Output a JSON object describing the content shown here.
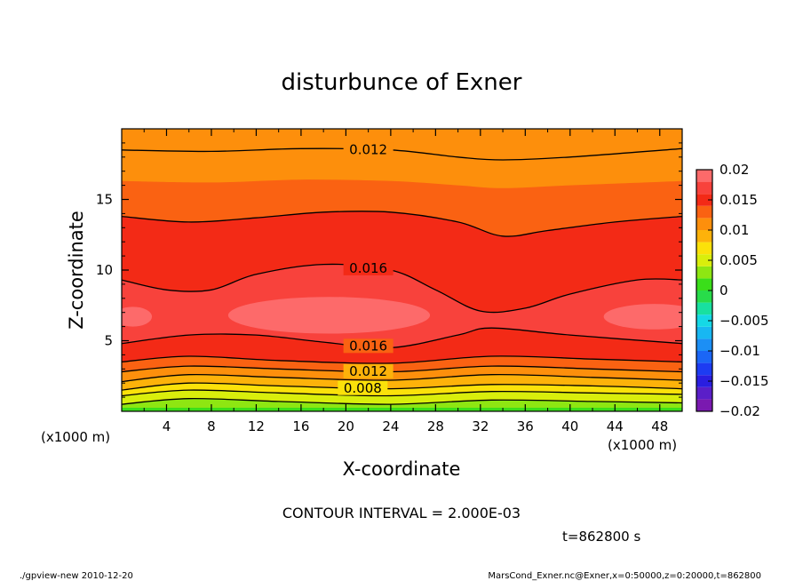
{
  "chart_data": {
    "type": "heatmap",
    "title": "disturbunce of Exner",
    "xlabel": "X-coordinate",
    "ylabel": "Z-coordinate",
    "x_unit": "(x1000 m)",
    "z_unit": "(x1000 m)",
    "xlim": [
      0,
      50
    ],
    "ylim": [
      0,
      20
    ],
    "x_ticks": [
      "4",
      "8",
      "12",
      "16",
      "20",
      "24",
      "28",
      "32",
      "36",
      "40",
      "44",
      "48"
    ],
    "y_ticks": [
      "5",
      "10",
      "15"
    ],
    "colorbar": {
      "ticks": [
        "0.02",
        "0.015",
        "0.01",
        "0.005",
        "0",
        "−0.005",
        "−0.01",
        "−0.015",
        "−0.02"
      ],
      "range": [
        -0.02,
        0.02
      ],
      "bands": [
        {
          "from": -0.02,
          "to": -0.018,
          "color": "#7a19b0"
        },
        {
          "from": -0.018,
          "to": -0.016,
          "color": "#5a1fc8"
        },
        {
          "from": -0.016,
          "to": -0.014,
          "color": "#2a1ee0"
        },
        {
          "from": -0.014,
          "to": -0.012,
          "color": "#1d3cf2"
        },
        {
          "from": -0.012,
          "to": -0.01,
          "color": "#1b66f6"
        },
        {
          "from": -0.01,
          "to": -0.008,
          "color": "#1c8ff5"
        },
        {
          "from": -0.008,
          "to": -0.006,
          "color": "#18b7f2"
        },
        {
          "from": -0.006,
          "to": -0.004,
          "color": "#15d8e6"
        },
        {
          "from": -0.004,
          "to": -0.002,
          "color": "#18e0a0"
        },
        {
          "from": -0.002,
          "to": 0.0,
          "color": "#28dc4a"
        },
        {
          "from": 0.0,
          "to": 0.002,
          "color": "#3ade1a"
        },
        {
          "from": 0.002,
          "to": 0.004,
          "color": "#8ee612"
        },
        {
          "from": 0.004,
          "to": 0.006,
          "color": "#d9ee0c"
        },
        {
          "from": 0.006,
          "to": 0.008,
          "color": "#fbe10a"
        },
        {
          "from": 0.008,
          "to": 0.01,
          "color": "#fdb20a"
        },
        {
          "from": 0.01,
          "to": 0.012,
          "color": "#fd8f0c"
        },
        {
          "from": 0.012,
          "to": 0.014,
          "color": "#fa6212"
        },
        {
          "from": 0.014,
          "to": 0.016,
          "color": "#f32a16"
        },
        {
          "from": 0.016,
          "to": 0.018,
          "color": "#f8423c"
        },
        {
          "from": 0.018,
          "to": 0.02,
          "color": "#fd6a6a"
        }
      ]
    },
    "field_bands": [
      {
        "value": 0.003,
        "color": "#8ee612",
        "top": [
          [
            0,
            0.5
          ],
          [
            6,
            0.9
          ],
          [
            14,
            0.7
          ],
          [
            24,
            0.5
          ],
          [
            33,
            0.8
          ],
          [
            42,
            0.7
          ],
          [
            50,
            0.6
          ]
        ]
      },
      {
        "value": 0.005,
        "color": "#d9ee0c",
        "top": [
          [
            0,
            1.1
          ],
          [
            6,
            1.5
          ],
          [
            14,
            1.3
          ],
          [
            24,
            1.1
          ],
          [
            33,
            1.4
          ],
          [
            42,
            1.3
          ],
          [
            50,
            1.2
          ]
        ]
      },
      {
        "value": 0.007,
        "color": "#fbe10a",
        "top": [
          [
            0,
            1.5
          ],
          [
            6,
            2.0
          ],
          [
            14,
            1.8
          ],
          [
            24,
            1.6
          ],
          [
            33,
            1.9
          ],
          [
            42,
            1.8
          ],
          [
            50,
            1.6
          ]
        ]
      },
      {
        "value": 0.009,
        "color": "#fdb20a",
        "top": [
          [
            0,
            2.1
          ],
          [
            6,
            2.6
          ],
          [
            14,
            2.4
          ],
          [
            24,
            2.2
          ],
          [
            33,
            2.6
          ],
          [
            42,
            2.4
          ],
          [
            50,
            2.2
          ]
        ]
      },
      {
        "value": 0.011,
        "color": "#fd8f0c",
        "top": [
          [
            0,
            2.8
          ],
          [
            6,
            3.2
          ],
          [
            14,
            3.0
          ],
          [
            24,
            2.8
          ],
          [
            33,
            3.2
          ],
          [
            42,
            3.0
          ],
          [
            50,
            2.8
          ]
        ]
      },
      {
        "value": 0.013,
        "color": "#fa6212",
        "top": [
          [
            0,
            3.5
          ],
          [
            6,
            3.9
          ],
          [
            14,
            3.6
          ],
          [
            24,
            3.4
          ],
          [
            33,
            3.9
          ],
          [
            42,
            3.7
          ],
          [
            50,
            3.5
          ]
        ]
      },
      {
        "value": 0.015,
        "color": "#f32a16",
        "top": [
          [
            0,
            4.8
          ],
          [
            6,
            5.4
          ],
          [
            12,
            5.4
          ],
          [
            18,
            4.9
          ],
          [
            24,
            4.5
          ],
          [
            30,
            5.4
          ],
          [
            33,
            5.9
          ],
          [
            40,
            5.4
          ],
          [
            50,
            4.8
          ]
        ]
      },
      {
        "value": 0.017,
        "color": "#f8423c",
        "top": [
          [
            0,
            9.3
          ],
          [
            4,
            8.6
          ],
          [
            8,
            8.6
          ],
          [
            12,
            9.7
          ],
          [
            18,
            10.4
          ],
          [
            24,
            10.0
          ],
          [
            28,
            8.6
          ],
          [
            32,
            7.1
          ],
          [
            36,
            7.3
          ],
          [
            40,
            8.3
          ],
          [
            46,
            9.3
          ],
          [
            50,
            9.3
          ]
        ]
      },
      {
        "value": 0.015,
        "color": "#f32a16",
        "top": [
          [
            0,
            13.8
          ],
          [
            6,
            13.4
          ],
          [
            12,
            13.7
          ],
          [
            18,
            14.1
          ],
          [
            24,
            14.1
          ],
          [
            30,
            13.4
          ],
          [
            34,
            12.4
          ],
          [
            38,
            12.8
          ],
          [
            44,
            13.4
          ],
          [
            50,
            13.8
          ]
        ]
      },
      {
        "value": 0.013,
        "color": "#fa6212",
        "top": [
          [
            0,
            16.3
          ],
          [
            8,
            16.2
          ],
          [
            16,
            16.4
          ],
          [
            24,
            16.3
          ],
          [
            30,
            16.0
          ],
          [
            34,
            15.8
          ],
          [
            40,
            16.0
          ],
          [
            50,
            16.3
          ]
        ]
      },
      {
        "value": 0.012,
        "color": "#fd8f0c",
        "top": [
          [
            0,
            20
          ],
          [
            50,
            20
          ]
        ]
      }
    ],
    "high_cores": [
      {
        "value": 0.019,
        "color": "#fd6a6a",
        "cx": 18.5,
        "cz": 6.8,
        "rx": 9,
        "rz": 1.3
      },
      {
        "value": 0.019,
        "color": "#fd6a6a",
        "cx": 1,
        "cz": 6.7,
        "rx": 1.7,
        "rz": 0.7
      },
      {
        "value": 0.019,
        "color": "#fd6a6a",
        "cx": 47.5,
        "cz": 6.7,
        "rx": 4.5,
        "rz": 0.9
      }
    ],
    "contours": [
      {
        "value": 0.004,
        "points": [
          [
            0,
            0.5
          ],
          [
            6,
            0.9
          ],
          [
            14,
            0.7
          ],
          [
            24,
            0.5
          ],
          [
            33,
            0.8
          ],
          [
            42,
            0.7
          ],
          [
            50,
            0.6
          ]
        ]
      },
      {
        "value": 0.006,
        "points": [
          [
            0,
            1.1
          ],
          [
            6,
            1.5
          ],
          [
            14,
            1.3
          ],
          [
            24,
            1.1
          ],
          [
            33,
            1.4
          ],
          [
            42,
            1.3
          ],
          [
            50,
            1.2
          ]
        ]
      },
      {
        "value": 0.008,
        "label": "0.008",
        "label_x": 21.5,
        "points": [
          [
            0,
            1.5
          ],
          [
            6,
            2.0
          ],
          [
            14,
            1.8
          ],
          [
            24,
            1.6
          ],
          [
            33,
            1.9
          ],
          [
            42,
            1.8
          ],
          [
            50,
            1.6
          ]
        ]
      },
      {
        "value": 0.01,
        "points": [
          [
            0,
            2.1
          ],
          [
            6,
            2.6
          ],
          [
            14,
            2.4
          ],
          [
            24,
            2.2
          ],
          [
            33,
            2.6
          ],
          [
            42,
            2.4
          ],
          [
            50,
            2.2
          ]
        ]
      },
      {
        "value": 0.012,
        "label": "0.012",
        "label_x": 22,
        "points": [
          [
            0,
            2.8
          ],
          [
            6,
            3.2
          ],
          [
            14,
            3.0
          ],
          [
            24,
            2.8
          ],
          [
            33,
            3.2
          ],
          [
            42,
            3.0
          ],
          [
            50,
            2.8
          ]
        ]
      },
      {
        "value": 0.014,
        "points": [
          [
            0,
            3.5
          ],
          [
            6,
            3.9
          ],
          [
            14,
            3.6
          ],
          [
            24,
            3.4
          ],
          [
            33,
            3.9
          ],
          [
            42,
            3.7
          ],
          [
            50,
            3.5
          ]
        ]
      },
      {
        "value": 0.016,
        "label": "0.016",
        "label_x": 22,
        "points": [
          [
            0,
            4.8
          ],
          [
            6,
            5.4
          ],
          [
            12,
            5.4
          ],
          [
            18,
            4.9
          ],
          [
            24,
            4.5
          ],
          [
            30,
            5.4
          ],
          [
            33,
            5.9
          ],
          [
            40,
            5.4
          ],
          [
            50,
            4.8
          ]
        ]
      },
      {
        "value": 0.016,
        "label": "0.016",
        "label_x": 22,
        "points": [
          [
            0,
            9.3
          ],
          [
            4,
            8.6
          ],
          [
            8,
            8.6
          ],
          [
            12,
            9.7
          ],
          [
            18,
            10.4
          ],
          [
            24,
            10.0
          ],
          [
            28,
            8.6
          ],
          [
            32,
            7.1
          ],
          [
            36,
            7.3
          ],
          [
            40,
            8.3
          ],
          [
            46,
            9.3
          ],
          [
            50,
            9.3
          ]
        ]
      },
      {
        "value": 0.014,
        "points": [
          [
            0,
            13.8
          ],
          [
            6,
            13.4
          ],
          [
            12,
            13.7
          ],
          [
            18,
            14.1
          ],
          [
            24,
            14.1
          ],
          [
            30,
            13.4
          ],
          [
            34,
            12.4
          ],
          [
            38,
            12.8
          ],
          [
            44,
            13.4
          ],
          [
            50,
            13.8
          ]
        ]
      },
      {
        "value": 0.012,
        "label": "0.012",
        "label_x": 22,
        "points": [
          [
            0,
            18.5
          ],
          [
            8,
            18.4
          ],
          [
            16,
            18.6
          ],
          [
            24,
            18.5
          ],
          [
            30,
            18.0
          ],
          [
            34,
            17.8
          ],
          [
            40,
            18.0
          ],
          [
            50,
            18.6
          ]
        ]
      }
    ]
  },
  "contour_interval": "CONTOUR INTERVAL = 2.000E-03",
  "time_label": "t=862800 s",
  "footer_left": "./gpview-new   2010-12-20",
  "footer_right": "MarsCond_Exner.nc@Exner,x=0:50000,z=0:20000,t=862800"
}
